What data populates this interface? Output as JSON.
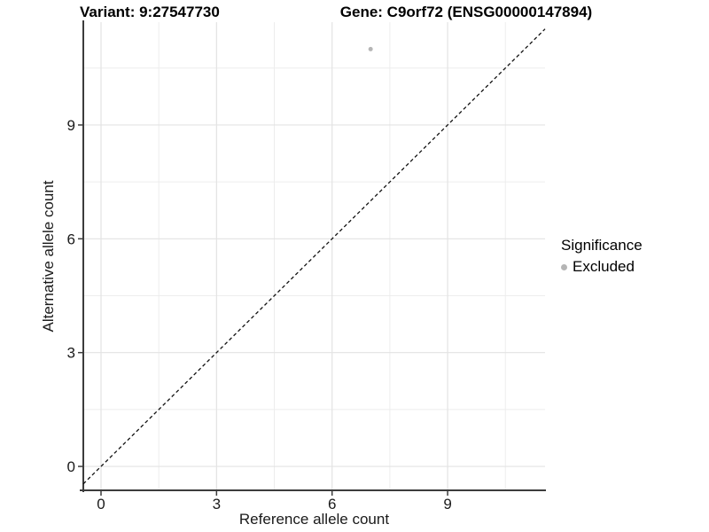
{
  "titles": {
    "variant": "Variant: 9:27547730",
    "gene": "Gene: C9orf72 (ENSG00000147894)"
  },
  "chart_data": {
    "type": "scatter",
    "xlabel": "Reference allele count",
    "ylabel": "Alternative allele count",
    "xlim": [
      -0.46,
      11.53
    ],
    "ylim": [
      -0.63,
      11.71
    ],
    "x_ticks": [
      0,
      3,
      6,
      9
    ],
    "y_ticks": [
      0,
      3,
      6,
      9
    ],
    "x_minor_ticks": [
      1.5,
      4.5,
      7.5,
      10.5
    ],
    "y_minor_ticks": [
      1.5,
      4.5,
      7.5,
      10.5
    ],
    "grid": true,
    "reference_line": {
      "type": "identity",
      "slope": 1,
      "intercept": 0,
      "style": "dashed",
      "color": "#111111"
    },
    "series": [
      {
        "name": "Excluded",
        "color": "#b5b5b5",
        "points": [
          {
            "x": 7,
            "y": 11
          }
        ]
      }
    ],
    "legend": {
      "position": "right",
      "title": "Significance",
      "items": [
        {
          "label": "Excluded",
          "color": "#b5b5b5"
        }
      ]
    }
  },
  "colors": {
    "background": "#ffffff",
    "grid_major": "#e3e3e3",
    "grid_minor": "#ededed",
    "axis_line": "#3c3c3c",
    "axis_text": "#1a1a1a",
    "point": "#b5b5b5"
  }
}
